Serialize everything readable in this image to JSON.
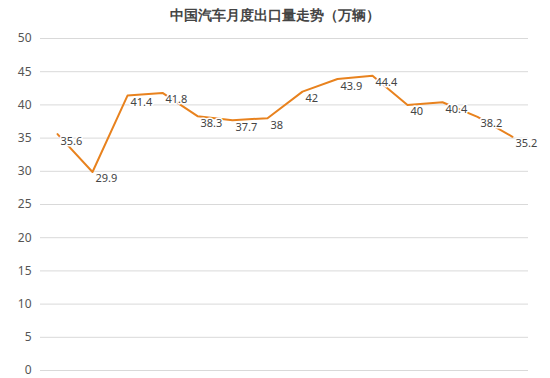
{
  "chart_data": {
    "type": "line",
    "title": "中国汽车月度出口量走势（万辆）",
    "categories": [
      null,
      null,
      null,
      null,
      null,
      null,
      null,
      null,
      null,
      null,
      null,
      null,
      null,
      null
    ],
    "values": [
      35.6,
      29.9,
      41.4,
      41.8,
      38.3,
      37.7,
      38,
      42,
      43.9,
      44.4,
      40,
      40.4,
      38.2,
      35.2
    ],
    "color": "#e8821e",
    "ylim": [
      0,
      50
    ],
    "yticks": [
      0,
      5,
      10,
      15,
      20,
      25,
      30,
      35,
      40,
      45,
      50
    ],
    "grid": true,
    "data_labels": true,
    "tick_labels": "y"
  }
}
